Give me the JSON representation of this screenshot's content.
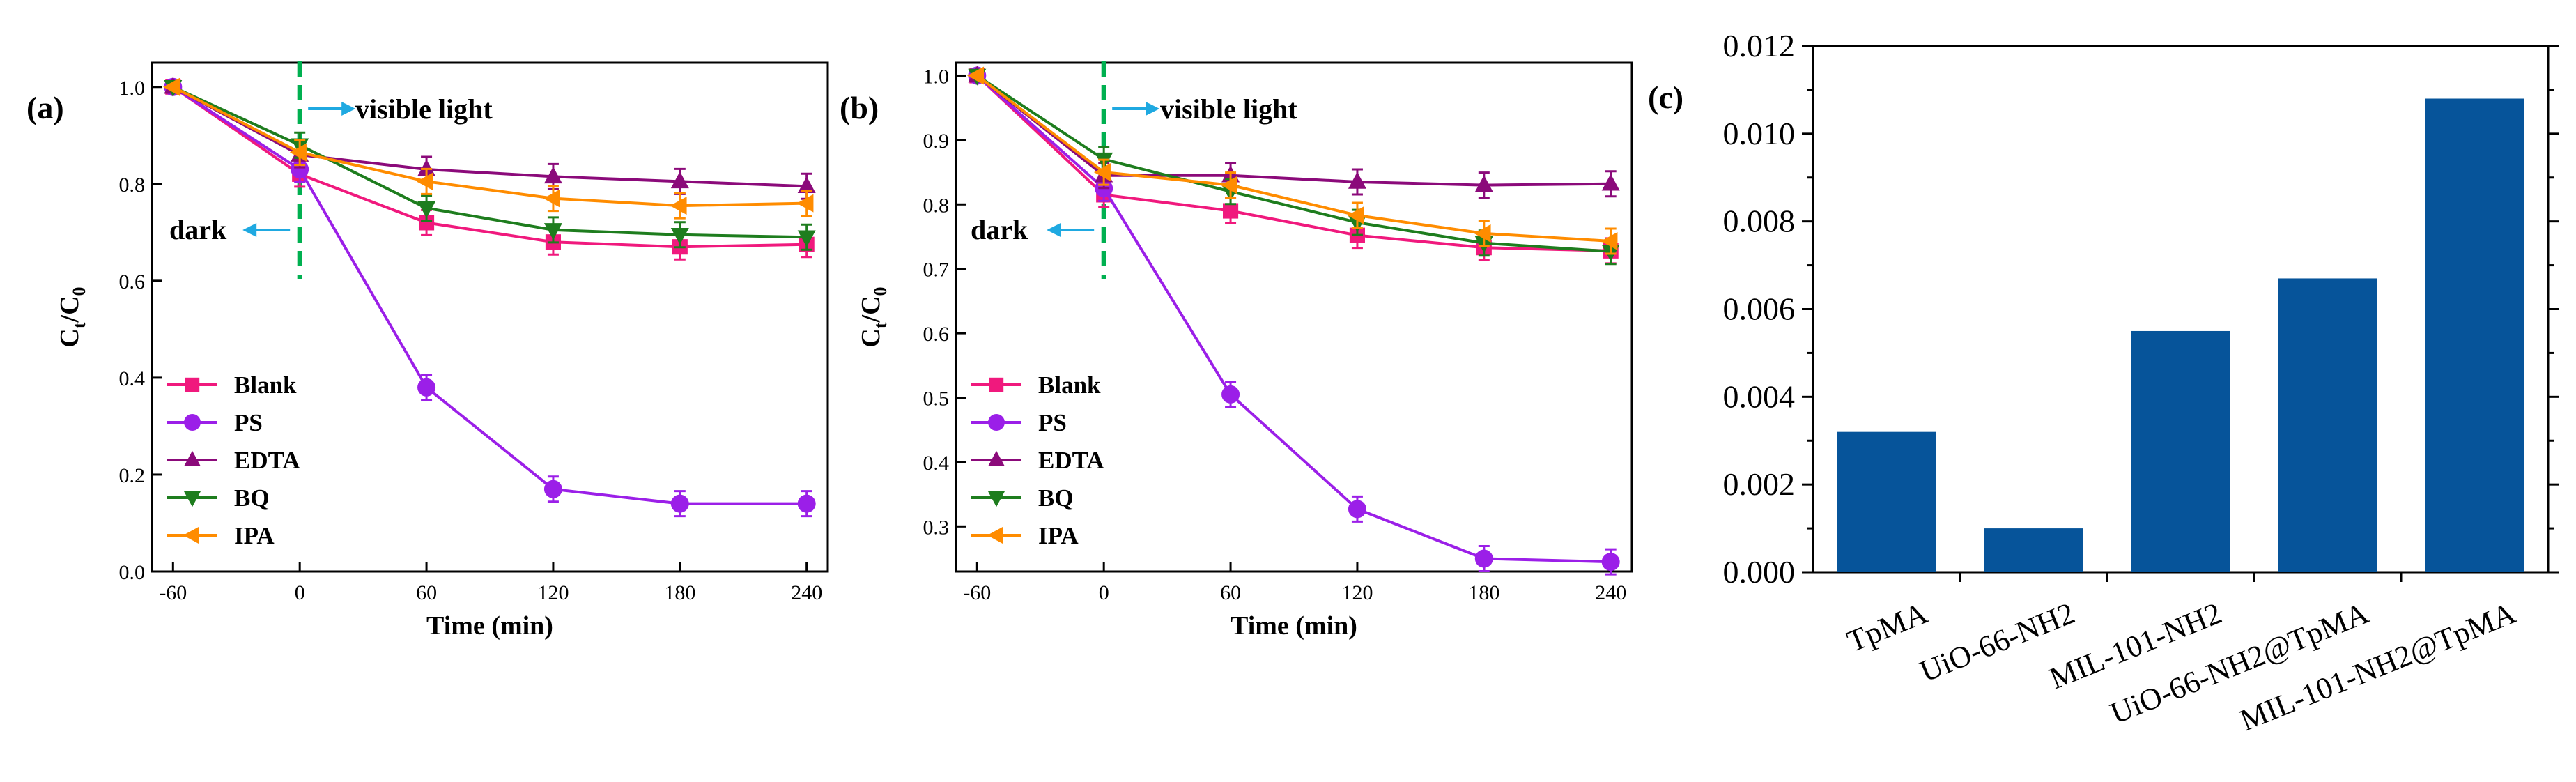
{
  "figure_labels": {
    "a": "(a)",
    "b": "(b)",
    "c": "(c)"
  },
  "annotations": {
    "light": "visible light",
    "dark": "dark"
  },
  "colors": {
    "Blank": "#f0197d",
    "PS": "#9b1fe8",
    "EDTA": "#8b0a7a",
    "BQ": "#1e7d1e",
    "IPA": "#ff8c00",
    "bar": "#06549a",
    "dash": "#00b050",
    "arrow": "#1fa9e1"
  },
  "chart_data": [
    {
      "id": "a",
      "type": "line",
      "title": "",
      "xlabel": "Time (min)",
      "ylabel": "Ct/C0",
      "ylabel_main": "C",
      "ylabel_sub1": "t",
      "ylabel_slash": "/C",
      "ylabel_sub2": "0",
      "x": [
        -60,
        0,
        60,
        120,
        180,
        240
      ],
      "xlim": [
        -70,
        250
      ],
      "ylim": [
        0.0,
        1.05
      ],
      "yticks": [
        0.0,
        0.2,
        0.4,
        0.6,
        0.8,
        1.0
      ],
      "yticklabels": [
        "0.0",
        "0.2",
        "0.4",
        "0.6",
        "0.8",
        "1.0"
      ],
      "xticklabels": [
        "-60",
        "0",
        "60",
        "120",
        "180",
        "240"
      ],
      "legend_location": "lower-left",
      "series": [
        {
          "name": "Blank",
          "marker": "square",
          "values": [
            1.0,
            0.82,
            0.72,
            0.68,
            0.67,
            0.675
          ]
        },
        {
          "name": "PS",
          "marker": "circle",
          "values": [
            1.0,
            0.83,
            0.38,
            0.17,
            0.14,
            0.14
          ]
        },
        {
          "name": "EDTA",
          "marker": "triangle-up",
          "values": [
            1.0,
            0.86,
            0.83,
            0.815,
            0.805,
            0.795
          ]
        },
        {
          "name": "BQ",
          "marker": "triangle-down",
          "values": [
            1.0,
            0.88,
            0.75,
            0.705,
            0.695,
            0.69
          ]
        },
        {
          "name": "IPA",
          "marker": "triangle-left",
          "values": [
            1.0,
            0.865,
            0.805,
            0.77,
            0.755,
            0.76
          ]
        }
      ]
    },
    {
      "id": "b",
      "type": "line",
      "title": "",
      "xlabel": "Time (min)",
      "ylabel": "Ct/C0",
      "ylabel_main": "C",
      "ylabel_sub1": "t",
      "ylabel_slash": "/C",
      "ylabel_sub2": "0",
      "x": [
        -60,
        0,
        60,
        120,
        180,
        240
      ],
      "xlim": [
        -70,
        250
      ],
      "ylim": [
        0.23,
        1.02
      ],
      "yticks": [
        0.3,
        0.4,
        0.5,
        0.6,
        0.7,
        0.8,
        0.9,
        1.0
      ],
      "yticklabels": [
        "0.3",
        "0.4",
        "0.5",
        "0.6",
        "0.7",
        "0.8",
        "0.9",
        "1.0"
      ],
      "xticklabels": [
        "-60",
        "0",
        "60",
        "120",
        "180",
        "240"
      ],
      "legend_location": "lower-left",
      "series": [
        {
          "name": "Blank",
          "marker": "square",
          "values": [
            1.0,
            0.815,
            0.79,
            0.752,
            0.733,
            0.728
          ]
        },
        {
          "name": "PS",
          "marker": "circle",
          "values": [
            1.0,
            0.825,
            0.505,
            0.327,
            0.25,
            0.245
          ]
        },
        {
          "name": "EDTA",
          "marker": "triangle-up",
          "values": [
            1.0,
            0.845,
            0.845,
            0.835,
            0.83,
            0.832
          ]
        },
        {
          "name": "BQ",
          "marker": "triangle-down",
          "values": [
            1.0,
            0.87,
            0.82,
            0.772,
            0.74,
            0.727
          ]
        },
        {
          "name": "IPA",
          "marker": "triangle-left",
          "values": [
            1.0,
            0.85,
            0.83,
            0.783,
            0.755,
            0.743
          ]
        }
      ]
    },
    {
      "id": "c",
      "type": "bar",
      "title": "",
      "xlabel": "",
      "ylabel": "",
      "categories": [
        "TpMA",
        "UiO-66-NH2",
        "MIL-101-NH2",
        "UiO-66-NH2@TpMA",
        "MIL-101-NH2@TpMA"
      ],
      "values": [
        0.0032,
        0.001,
        0.0055,
        0.0067,
        0.0108
      ],
      "ylim": [
        0.0,
        0.012
      ],
      "yticks": [
        0.0,
        0.002,
        0.004,
        0.006,
        0.008,
        0.01,
        0.012
      ],
      "yticklabels": [
        "0.000",
        "0.002",
        "0.004",
        "0.006",
        "0.008",
        "0.010",
        "0.012"
      ]
    }
  ]
}
